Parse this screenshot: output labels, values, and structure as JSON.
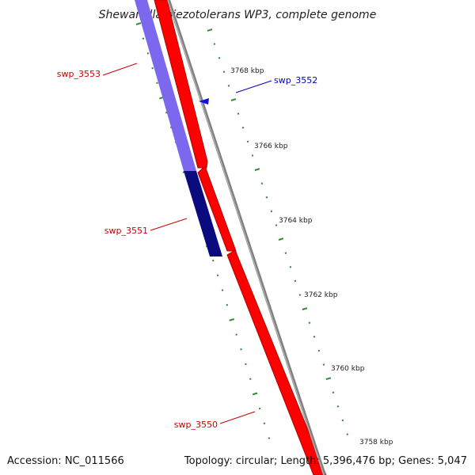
{
  "title": "Shewanella piezotolerans WP3, complete genome",
  "footer": {
    "accession": "Accession: NC_011566",
    "summary": "Topology: circular; Length: 5,396,476 bp; Genes: 5,047"
  },
  "colors": {
    "forward_gene": "#ff0000",
    "reverse_gene_light": "#7b68ee",
    "reverse_gene_dark": "#0b0b80",
    "backbone": "#808080",
    "ticks": "#2e8b2e",
    "label_forward": "#cc0000",
    "label_reverse": "#0000cc"
  },
  "scale_labels": [
    "3768 kbp",
    "3766 kbp",
    "3764 kbp",
    "3762 kbp",
    "3760 kbp",
    "3758 kbp"
  ],
  "genes": [
    {
      "name": "swp_3553",
      "strand": "reverse"
    },
    {
      "name": "swp_3552",
      "strand": "forward"
    },
    {
      "name": "swp_3551",
      "strand": "reverse"
    },
    {
      "name": "swp_3550",
      "strand": "forward"
    }
  ]
}
